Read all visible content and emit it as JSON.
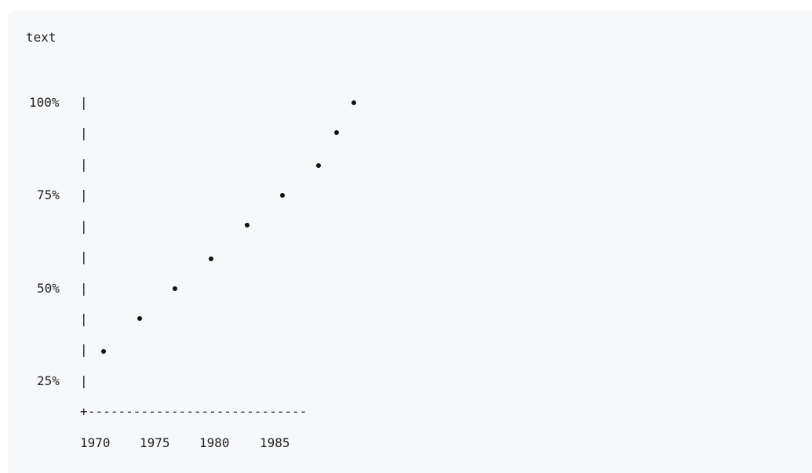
{
  "code_block": {
    "language_label": "text"
  },
  "chart_data": {
    "type": "scatter",
    "y_tick_labels": [
      "100%",
      "75%",
      "50%",
      "25%"
    ],
    "x_tick_labels": [
      "1970",
      "1975",
      "1980",
      "1985"
    ],
    "axis_corner": "+",
    "x_axis_dashes": "-----------------------------",
    "ylim": [
      25,
      100
    ],
    "points": [
      {
        "x": 1971,
        "y": 33
      },
      {
        "x": 1974,
        "y": 42
      },
      {
        "x": 1977,
        "y": 50
      },
      {
        "x": 1980,
        "y": 58
      },
      {
        "x": 1983,
        "y": 67
      },
      {
        "x": 1986,
        "y": 75
      },
      {
        "x": 1989,
        "y": 83
      },
      {
        "x": 1990.5,
        "y": 92
      },
      {
        "x": 1992,
        "y": 100
      }
    ]
  }
}
